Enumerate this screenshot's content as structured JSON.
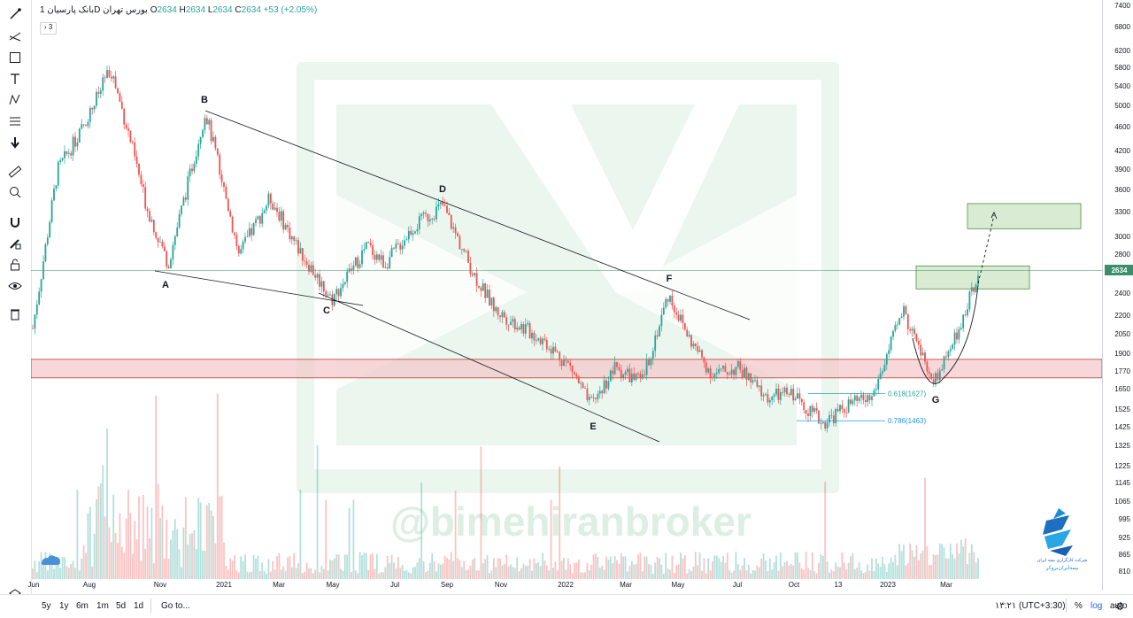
{
  "header": {
    "symbol": "بانک پارسیان",
    "interval": "1D",
    "exchange": "بورس تهران",
    "open_label": "O",
    "open": "2634",
    "high_label": "H",
    "high": "2634",
    "low_label": "L",
    "low": "2634",
    "close_label": "C",
    "close": "2634",
    "change": "+53 (+2.05%)",
    "indicators_toggle": "3"
  },
  "toolbar": {
    "icons": [
      "cursor-icon",
      "trendline-icon",
      "rectangle-icon",
      "text-icon",
      "pattern-icon",
      "fib-icon",
      "arrow-down-icon",
      "ruler-icon",
      "zoom-icon",
      "magnet-icon",
      "lock-drawing-icon",
      "lock-icon",
      "eye-icon",
      "trash-icon",
      "layers-icon"
    ]
  },
  "watermark": "@bimehiranbroker",
  "logo": {
    "line1": "شرکت کارگزاری بیمه ایران",
    "line2": "بیمه‌ایران‌بروکر"
  },
  "price_axis": {
    "ticks": [
      "7400",
      "6800",
      "6200",
      "5800",
      "5400",
      "5000",
      "4600",
      "4200",
      "3900",
      "3600",
      "3300",
      "3000",
      "2800",
      "2600",
      "2400",
      "2200",
      "2050",
      "1900",
      "1770",
      "1650",
      "1525",
      "1425",
      "1325",
      "1225",
      "1145",
      "1065",
      "995",
      "925",
      "865",
      "810"
    ],
    "current_price": "2634"
  },
  "time_axis": {
    "labels": [
      "Jun",
      "Aug",
      "Nov",
      "2021",
      "Mar",
      "May",
      "Jul",
      "Sep",
      "Nov",
      "2022",
      "Mar",
      "May",
      "Jul",
      "Oct",
      "13",
      "2023",
      "Mar"
    ]
  },
  "annotations": {
    "points": [
      "A",
      "B",
      "C",
      "D",
      "E",
      "F",
      "G"
    ],
    "fib_618": "0.618(1627)",
    "fib_786": "0.786(1463)"
  },
  "bottom_bar": {
    "ranges": [
      "5y",
      "1y",
      "6m",
      "1m",
      "5d",
      "1d"
    ],
    "goto": "Go to...",
    "time": "۱۳:۲۱ (UTC+3:30)",
    "percent": "%",
    "log": "log",
    "auto": "auto"
  },
  "colors": {
    "up": "#26a69a",
    "down": "#ef5350",
    "support_zone": "#f3c6c9",
    "target_zone": "#cfe6c8",
    "watermark": "#dcefe2"
  },
  "chart_data": {
    "type": "candlestick",
    "title": "بانک پارسیان 1D بورس تهران",
    "scale": "log",
    "ylim": [
      780,
      7600
    ],
    "x_labels": [
      "Jun",
      "Aug",
      "Nov",
      "2021",
      "Mar",
      "May",
      "Jul",
      "Sep",
      "Nov",
      "2022",
      "Mar",
      "May",
      "Jul",
      "Oct",
      "13",
      "2023",
      "Mar"
    ],
    "close_path": [
      {
        "x": "Jun 2020",
        "y": 2100
      },
      {
        "x": "Jul 2020",
        "y": 3900
      },
      {
        "x": "Aug 2020",
        "y": 4500
      },
      {
        "x": "Aug 2020",
        "y": 5800
      },
      {
        "x": "Sep 2020",
        "y": 4400
      },
      {
        "x": "Oct 2020",
        "y": 3400
      },
      {
        "x": "Nov 2020",
        "y": 2700
      },
      {
        "x": "Dec 2020",
        "y": 4900
      },
      {
        "x": "Jan 2021",
        "y": 3800
      },
      {
        "x": "Feb 2021",
        "y": 2800
      },
      {
        "x": "Mar 2021",
        "y": 3500
      },
      {
        "x": "Apr 2021",
        "y": 2900
      },
      {
        "x": "May 2021",
        "y": 2350
      },
      {
        "x": "Jun 2021",
        "y": 2900
      },
      {
        "x": "Jul 2021",
        "y": 2700
      },
      {
        "x": "Aug 2021",
        "y": 3100
      },
      {
        "x": "Sep 2021",
        "y": 3400
      },
      {
        "x": "Oct 2021",
        "y": 2600
      },
      {
        "x": "Nov 2021",
        "y": 2250
      },
      {
        "x": "Dec 2021",
        "y": 2000
      },
      {
        "x": "Jan 2022",
        "y": 1800
      },
      {
        "x": "Feb 2022",
        "y": 1550
      },
      {
        "x": "Mar 2022",
        "y": 1800
      },
      {
        "x": "Apr 2022",
        "y": 1700
      },
      {
        "x": "May 2022",
        "y": 2400
      },
      {
        "x": "Jun 2022",
        "y": 2000
      },
      {
        "x": "Jul 2022",
        "y": 1750
      },
      {
        "x": "Aug 2022",
        "y": 1800
      },
      {
        "x": "Sep 2022",
        "y": 1600
      },
      {
        "x": "Oct 2022",
        "y": 1630
      },
      {
        "x": "Nov 2022",
        "y": 1450
      },
      {
        "x": "Dec 2022",
        "y": 1560
      },
      {
        "x": "Jan 2023",
        "y": 1600
      },
      {
        "x": "Jan 2023",
        "y": 2250
      },
      {
        "x": "Feb 2023",
        "y": 1700
      },
      {
        "x": "Mar 2023",
        "y": 1950
      },
      {
        "x": "Apr 2023",
        "y": 2634
      }
    ],
    "zones": [
      {
        "name": "support",
        "from": 1730,
        "to": 1860
      },
      {
        "name": "target-1",
        "from": 2450,
        "to": 2680
      },
      {
        "name": "target-2",
        "from": 3100,
        "to": 3420
      }
    ],
    "horizontal_lines": [
      {
        "value": 2634
      }
    ],
    "fib_levels": [
      {
        "label": "0.618(1627)",
        "value": 1627
      },
      {
        "label": "0.786(1463)",
        "value": 1463
      }
    ]
  }
}
